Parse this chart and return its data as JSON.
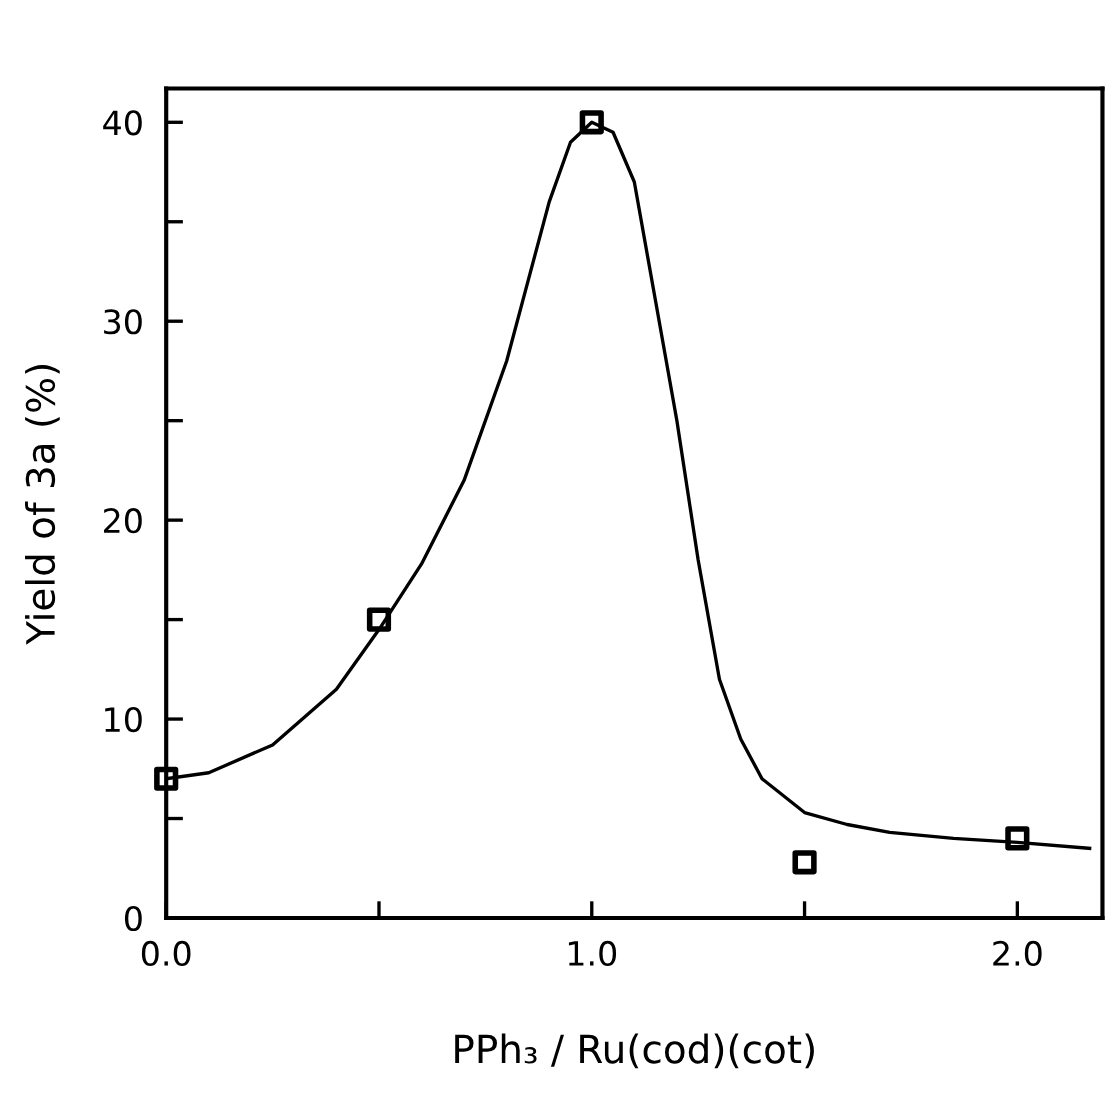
{
  "chart_data": {
    "type": "scatter",
    "xlabel": "PPh₃ / Ru(cod)(cot)",
    "ylabel": "Yield of 3a (%)",
    "xlim": [
      0,
      2.2
    ],
    "ylim": [
      0,
      41.7
    ],
    "xticks": [
      {
        "value": 0,
        "label": "0.0"
      },
      {
        "value": 0.5,
        "label": null
      },
      {
        "value": 1,
        "label": "1.0"
      },
      {
        "value": 1.5,
        "label": null
      },
      {
        "value": 2,
        "label": "2.0"
      }
    ],
    "yticks": [
      0,
      {
        "value": 5,
        "label": null
      },
      10,
      {
        "value": 15,
        "label": null
      },
      20,
      {
        "value": 25,
        "label": null
      },
      30,
      {
        "value": 35,
        "label": null
      },
      40
    ],
    "grid": false,
    "legend": false,
    "series": [
      {
        "color": "#000000",
        "marker": "square",
        "x": [
          0,
          0.5,
          1.0,
          1.5,
          2.0
        ],
        "values": [
          7,
          15,
          40,
          2.8,
          4
        ]
      },
      {
        "type": "line",
        "color": "#000000",
        "marker": "none",
        "line_style": "solid",
        "x": [
          0,
          0.1,
          0.25,
          0.4,
          0.5,
          0.6,
          0.7,
          0.8,
          0.85,
          0.9,
          0.95,
          1.0,
          1.05,
          1.1,
          1.15,
          1.2,
          1.25,
          1.3,
          1.35,
          1.4,
          1.5,
          1.6,
          1.7,
          1.85,
          2.0,
          2.17
        ],
        "values": [
          7,
          7.3,
          8.7,
          11.5,
          14.5,
          17.8,
          22,
          28,
          32,
          36,
          39,
          40,
          39.5,
          37,
          31,
          25,
          18,
          12,
          9,
          7,
          5.3,
          4.7,
          4.3,
          4,
          3.8,
          3.5
        ]
      }
    ]
  }
}
